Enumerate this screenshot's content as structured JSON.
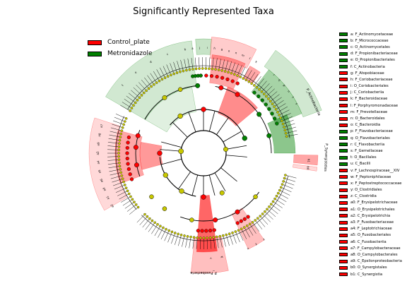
{
  "title": "Significantly Represented Taxa",
  "colors": {
    "control": "#ff0000",
    "metro": "#008000",
    "nonsig": "#c8c800"
  },
  "group_legend": [
    {
      "label": "Control_plate",
      "color": "#ff0000"
    },
    {
      "label": "Metronidazole",
      "color": "#008000"
    }
  ],
  "taxa_legend": [
    {
      "label": "a: F_Actinomycetaceae",
      "group": "metro"
    },
    {
      "label": "b: F_Micrococcaceae",
      "group": "metro"
    },
    {
      "label": "c: O_Actinomycetales",
      "group": "metro"
    },
    {
      "label": "d: F_Propionibacteriaceae",
      "group": "metro"
    },
    {
      "label": "e: O_Propionibacteriales",
      "group": "metro"
    },
    {
      "label": "f: C_Actinobacteria",
      "group": "metro"
    },
    {
      "label": "g: F_Atopobiaceae",
      "group": "control"
    },
    {
      "label": "h: F_Coriobacteriaceae",
      "group": "control"
    },
    {
      "label": "i: O_Coriobacteriales",
      "group": "control"
    },
    {
      "label": "j: C_Coriobacteriia",
      "group": "control"
    },
    {
      "label": "k: F_Bacteroidaceae",
      "group": "control"
    },
    {
      "label": "l: F_Porphyromonadaceae",
      "group": "control"
    },
    {
      "label": "m: F_Prevotellaceae",
      "group": "control"
    },
    {
      "label": "n: O_Bacteroidales",
      "group": "control"
    },
    {
      "label": "o: C_Bacteroidia",
      "group": "control"
    },
    {
      "label": "p: F_Flavobacteriaceae",
      "group": "metro"
    },
    {
      "label": "q: O_Flavobacteriales",
      "group": "metro"
    },
    {
      "label": "r: C_Flavobacteriia",
      "group": "metro"
    },
    {
      "label": "s: F_Gemellaceae",
      "group": "metro"
    },
    {
      "label": "t: O_Bacillales",
      "group": "metro"
    },
    {
      "label": "u: C_Bacilli",
      "group": "metro"
    },
    {
      "label": "v: F_Lachnospiraceae__XIV",
      "group": "control"
    },
    {
      "label": "w: F_Peptoniphilaceae",
      "group": "control"
    },
    {
      "label": "x: F_Peptostreptococcaceae",
      "group": "control"
    },
    {
      "label": "y: O_Clostridiales",
      "group": "control"
    },
    {
      "label": "z: C_Clostridia",
      "group": "control"
    },
    {
      "label": "a0: F_Erysipelotrichaceae",
      "group": "control"
    },
    {
      "label": "a1: O_Erysipelotrichales",
      "group": "control"
    },
    {
      "label": "a2: C_Erysipelotrichia",
      "group": "control"
    },
    {
      "label": "a3: F_Fusobacteriaceae",
      "group": "control"
    },
    {
      "label": "a4: F_Leptotrichiaceae",
      "group": "control"
    },
    {
      "label": "a5: O_Fusobacteriales",
      "group": "control"
    },
    {
      "label": "a6: C_Fusobacteriia",
      "group": "control"
    },
    {
      "label": "a7: F_Campylobacteraceae",
      "group": "control"
    },
    {
      "label": "a8: O_Campylobacterales",
      "group": "control"
    },
    {
      "label": "a9: C_Epsilonproteobacteria",
      "group": "control"
    },
    {
      "label": "b0: O_Synergistales",
      "group": "control"
    },
    {
      "label": "b1: C_Synergistia",
      "group": "control"
    }
  ],
  "phylum_labels": [
    {
      "text": "P_Actinobacteria",
      "group": "metro"
    },
    {
      "text": "P_Synergistetes",
      "group": "control"
    },
    {
      "text": "P_Fusobacteria",
      "group": "control"
    }
  ],
  "clade_letters": [
    "f",
    "e",
    "d",
    "c",
    "b",
    "a",
    "j",
    "i",
    "h",
    "g",
    "o",
    "n",
    "m",
    "l",
    "k",
    "r",
    "q",
    "p",
    "u",
    "t",
    "s",
    "z",
    "y",
    "x",
    "w",
    "v",
    "a2",
    "a1",
    "a0",
    "a6",
    "a5",
    "a4",
    "a3",
    "a9",
    "a8",
    "a7",
    "b1",
    "b0"
  ]
}
